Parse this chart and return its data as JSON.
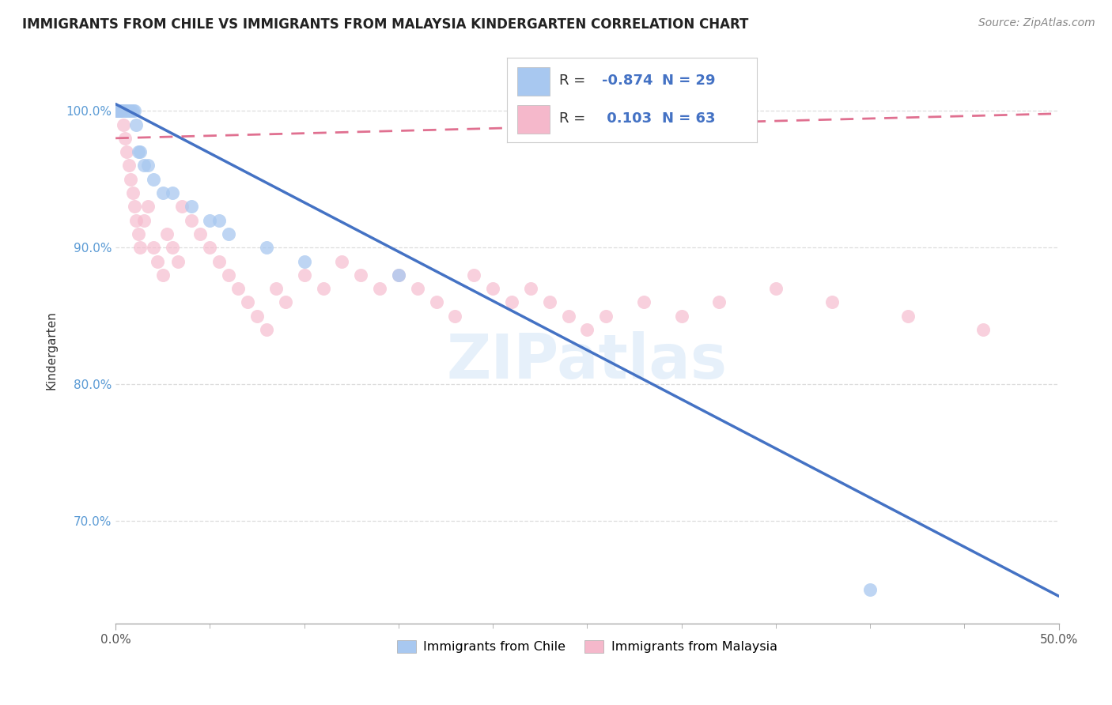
{
  "title": "IMMIGRANTS FROM CHILE VS IMMIGRANTS FROM MALAYSIA KINDERGARTEN CORRELATION CHART",
  "source": "Source: ZipAtlas.com",
  "ylabel": "Kindergarten",
  "legend_R_chile": "-0.874",
  "legend_N_chile": "29",
  "legend_R_malaysia": "0.103",
  "legend_N_malaysia": "63",
  "chile_color": "#a8c8f0",
  "malaysia_color": "#f5b8cb",
  "chile_line_color": "#4472c4",
  "malaysia_line_color": "#e07090",
  "watermark": "ZIPatlas",
  "chile_scatter_x": [
    0.0005,
    0.001,
    0.0015,
    0.002,
    0.0025,
    0.003,
    0.004,
    0.005,
    0.006,
    0.007,
    0.008,
    0.009,
    0.01,
    0.011,
    0.012,
    0.013,
    0.015,
    0.017,
    0.02,
    0.025,
    0.03,
    0.04,
    0.05,
    0.055,
    0.06,
    0.08,
    0.1,
    0.15,
    0.4
  ],
  "chile_scatter_y": [
    1.0,
    1.0,
    1.0,
    1.0,
    1.0,
    1.0,
    1.0,
    1.0,
    1.0,
    1.0,
    1.0,
    1.0,
    1.0,
    0.99,
    0.97,
    0.97,
    0.96,
    0.96,
    0.95,
    0.94,
    0.94,
    0.93,
    0.92,
    0.92,
    0.91,
    0.9,
    0.89,
    0.88,
    0.65
  ],
  "malaysia_scatter_x": [
    0.0003,
    0.0005,
    0.0008,
    0.001,
    0.0012,
    0.0015,
    0.002,
    0.0025,
    0.003,
    0.004,
    0.005,
    0.006,
    0.007,
    0.008,
    0.009,
    0.01,
    0.011,
    0.012,
    0.013,
    0.015,
    0.017,
    0.02,
    0.022,
    0.025,
    0.027,
    0.03,
    0.033,
    0.035,
    0.04,
    0.045,
    0.05,
    0.055,
    0.06,
    0.065,
    0.07,
    0.075,
    0.08,
    0.085,
    0.09,
    0.1,
    0.11,
    0.12,
    0.13,
    0.14,
    0.15,
    0.16,
    0.17,
    0.18,
    0.19,
    0.2,
    0.21,
    0.22,
    0.23,
    0.24,
    0.25,
    0.26,
    0.28,
    0.3,
    0.32,
    0.35,
    0.38,
    0.42,
    0.46
  ],
  "malaysia_scatter_y": [
    1.0,
    1.0,
    1.0,
    1.0,
    1.0,
    1.0,
    1.0,
    1.0,
    1.0,
    0.99,
    0.98,
    0.97,
    0.96,
    0.95,
    0.94,
    0.93,
    0.92,
    0.91,
    0.9,
    0.92,
    0.93,
    0.9,
    0.89,
    0.88,
    0.91,
    0.9,
    0.89,
    0.93,
    0.92,
    0.91,
    0.9,
    0.89,
    0.88,
    0.87,
    0.86,
    0.85,
    0.84,
    0.87,
    0.86,
    0.88,
    0.87,
    0.89,
    0.88,
    0.87,
    0.88,
    0.87,
    0.86,
    0.85,
    0.88,
    0.87,
    0.86,
    0.87,
    0.86,
    0.85,
    0.84,
    0.85,
    0.86,
    0.85,
    0.86,
    0.87,
    0.86,
    0.85,
    0.84
  ],
  "xlim": [
    0.0,
    0.5
  ],
  "ylim": [
    0.625,
    1.025
  ],
  "chile_line_x": [
    0.0,
    0.5
  ],
  "chile_line_y": [
    1.005,
    0.645
  ],
  "malaysia_line_x": [
    0.0,
    0.5
  ],
  "malaysia_line_y": [
    0.98,
    0.998
  ],
  "yticks": [
    0.7,
    0.8,
    0.9,
    1.0
  ],
  "ytick_labels": [
    "70.0%",
    "80.0%",
    "90.0%",
    "100.0%"
  ],
  "xticks": [
    0.0,
    0.5
  ],
  "xtick_labels": [
    "0.0%",
    "50.0%"
  ],
  "grid_color": "#dddddd",
  "title_fontsize": 12,
  "source_fontsize": 10
}
